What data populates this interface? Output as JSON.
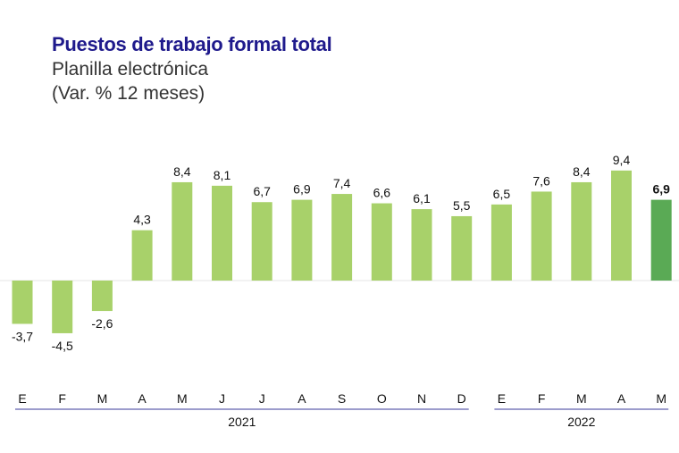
{
  "chart_data": {
    "type": "bar",
    "title": "Puestos de trabajo formal total",
    "subtitle": "Planilla electrónica",
    "unit_label": "(Var. % 12 meses)",
    "categories": [
      "E",
      "F",
      "M",
      "A",
      "M",
      "J",
      "J",
      "A",
      "S",
      "O",
      "N",
      "D",
      "E",
      "F",
      "M",
      "A",
      "M"
    ],
    "values": [
      -3.7,
      -4.5,
      -2.6,
      4.3,
      8.4,
      8.1,
      6.7,
      6.9,
      7.4,
      6.6,
      6.1,
      5.5,
      6.5,
      7.6,
      8.4,
      9.4,
      6.9
    ],
    "value_labels": [
      "-3,7",
      "-4,5",
      "-2,6",
      "4,3",
      "8,4",
      "8,1",
      "6,7",
      "6,9",
      "7,4",
      "6,6",
      "6,1",
      "5,5",
      "6,5",
      "7,6",
      "8,4",
      "9,4",
      "6,9"
    ],
    "years": [
      {
        "label": "2021",
        "start": 0,
        "end": 11
      },
      {
        "label": "2022",
        "start": 12,
        "end": 16
      }
    ],
    "highlight_index": 16,
    "colors": {
      "bar": "#a8d16a",
      "highlight": "#5aaa55",
      "title": "#1f1a8c",
      "year_line": "#3a3a9a"
    },
    "grid": false,
    "legend": "none"
  }
}
